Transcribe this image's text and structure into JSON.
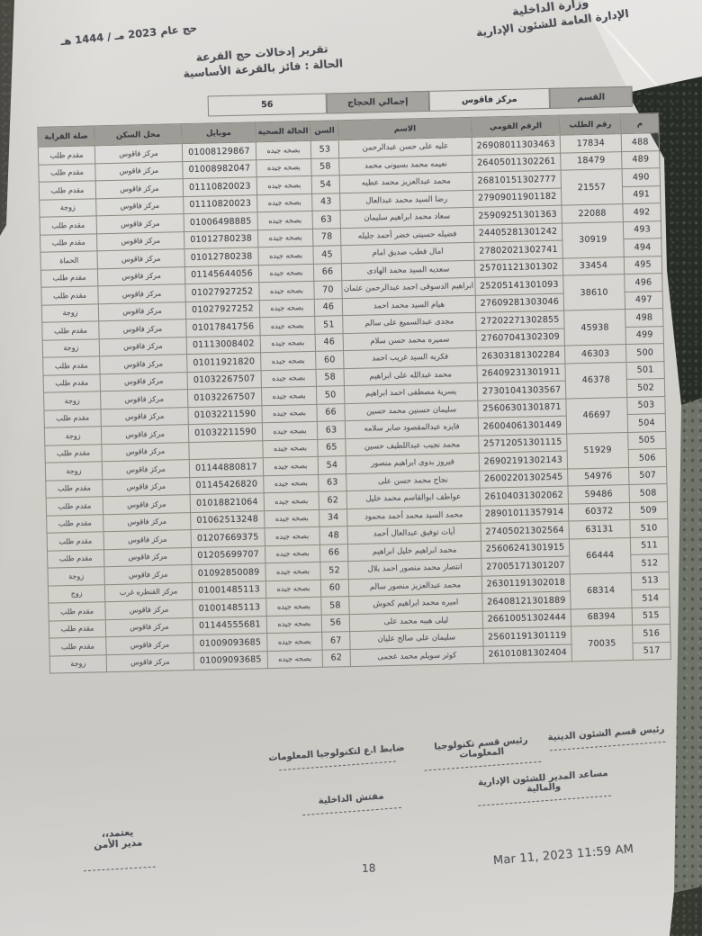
{
  "meta": {
    "ministry_line1": "وزارة الداخلية",
    "ministry_line2": "الإدارة العامة للشئون الإدارية",
    "hajj_year": "حج عام 2023 مـ / 1444 هـ",
    "report_title": "تقرير إدخالات حج القرعة",
    "report_status": "الحالة : فائز بالقرعة الأساسية"
  },
  "summary": {
    "section_label": "القسم",
    "section_value": "مركز فاقوس",
    "total_label": "إجمالي الحجاج",
    "total_value": "56"
  },
  "table": {
    "columns": [
      "م",
      "رقم الطلب",
      "الرقم القومي",
      "الاسم",
      "السن",
      "الحالة الصحية",
      "موبايل",
      "محل السكن",
      "صلة القرابة"
    ],
    "rows": [
      {
        "serial": "488",
        "app_no": "17834",
        "app_span": 1,
        "national_id": "26908011303463",
        "name": "عليه على حسن عبدالرحمن",
        "age": "53",
        "health": "بصحه جيده",
        "mobile": "01008129867",
        "residence": "مركز فاقوس",
        "relation": "مقدم طلب"
      },
      {
        "serial": "489",
        "app_no": "18479",
        "app_span": 1,
        "national_id": "26405011302261",
        "name": "نعيمه محمد بسيونى محمد",
        "age": "58",
        "health": "بصحه جيده",
        "mobile": "01008982047",
        "residence": "مركز فاقوس",
        "relation": "مقدم طلب"
      },
      {
        "serial": "490",
        "app_no": "21557",
        "app_span": 2,
        "national_id": "26810151302777",
        "name": "محمد عبدالعزيز محمد عطيه",
        "age": "54",
        "health": "بصحه جيده",
        "mobile": "01110820023",
        "residence": "مركز فاقوس",
        "relation": "مقدم طلب"
      },
      {
        "serial": "491",
        "app_no": "",
        "app_span": 0,
        "national_id": "27909011901182",
        "name": "رضا السيد محمد عبدالعال",
        "age": "43",
        "health": "بصحه جيده",
        "mobile": "01110820023",
        "residence": "مركز فاقوس",
        "relation": "زوجة"
      },
      {
        "serial": "492",
        "app_no": "22088",
        "app_span": 1,
        "national_id": "25909251301363",
        "name": "سعاد محمد ابراهيم سليمان",
        "age": "63",
        "health": "بصحه جيده",
        "mobile": "01006498885",
        "residence": "مركز فاقوس",
        "relation": "مقدم طلب"
      },
      {
        "serial": "493",
        "app_no": "30919",
        "app_span": 2,
        "national_id": "24405281301242",
        "name": "فضيله حسينى خضر أحمد جليله",
        "age": "78",
        "health": "بصحه جيده",
        "mobile": "01012780238",
        "residence": "مركز فاقوس",
        "relation": "مقدم طلب"
      },
      {
        "serial": "494",
        "app_no": "",
        "app_span": 0,
        "national_id": "27802021302741",
        "name": "امال قطب صديق امام",
        "age": "45",
        "health": "بصحه جيده",
        "mobile": "01012780238",
        "residence": "مركز فاقوس",
        "relation": "الحماة"
      },
      {
        "serial": "495",
        "app_no": "33454",
        "app_span": 1,
        "national_id": "25701121301302",
        "name": "سعديه السيد محمد الهادى",
        "age": "66",
        "health": "بصحه جيده",
        "mobile": "01145644056",
        "residence": "مركز فاقوس",
        "relation": "مقدم طلب"
      },
      {
        "serial": "496",
        "app_no": "38610",
        "app_span": 2,
        "national_id": "25205141301093",
        "name": "ابراهيم الدسوقى احمد عبدالرحمن عثمان",
        "age": "70",
        "health": "بصحه جيده",
        "mobile": "01027927252",
        "residence": "مركز فاقوس",
        "relation": "مقدم طلب"
      },
      {
        "serial": "497",
        "app_no": "",
        "app_span": 0,
        "national_id": "27609281303046",
        "name": "هيام السيد محمد احمد",
        "age": "46",
        "health": "بصحه جيده",
        "mobile": "01027927252",
        "residence": "مركز فاقوس",
        "relation": "زوجة"
      },
      {
        "serial": "498",
        "app_no": "45938",
        "app_span": 2,
        "national_id": "27202271302855",
        "name": "مجدى عبدالسميع على سالم",
        "age": "51",
        "health": "بصحه جيده",
        "mobile": "01017841756",
        "residence": "مركز فاقوس",
        "relation": "مقدم طلب"
      },
      {
        "serial": "499",
        "app_no": "",
        "app_span": 0,
        "national_id": "27607041302309",
        "name": "سميره محمد حسن سلام",
        "age": "46",
        "health": "بصحه جيده",
        "mobile": "01113008402",
        "residence": "مركز فاقوس",
        "relation": "زوجة"
      },
      {
        "serial": "500",
        "app_no": "46303",
        "app_span": 1,
        "national_id": "26303181302284",
        "name": "فكريه السيد غريب احمد",
        "age": "60",
        "health": "بصحه جيده",
        "mobile": "01011921820",
        "residence": "مركز فاقوس",
        "relation": "مقدم طلب"
      },
      {
        "serial": "501",
        "app_no": "46378",
        "app_span": 2,
        "national_id": "26409231301911",
        "name": "محمد عبدالله على ابراهيم",
        "age": "58",
        "health": "بصحه جيده",
        "mobile": "01032267507",
        "residence": "مركز فاقوس",
        "relation": "مقدم طلب"
      },
      {
        "serial": "502",
        "app_no": "",
        "app_span": 0,
        "national_id": "27301041303567",
        "name": "يسرية مصطفى احمد ابراهيم",
        "age": "50",
        "health": "بصحه جيده",
        "mobile": "01032267507",
        "residence": "مركز فاقوس",
        "relation": "زوجة"
      },
      {
        "serial": "503",
        "app_no": "46697",
        "app_span": 2,
        "national_id": "25606301301871",
        "name": "سليمان حسنين محمد حسين",
        "age": "66",
        "health": "بصحه جيده",
        "mobile": "01032211590",
        "residence": "مركز فاقوس",
        "relation": "مقدم طلب"
      },
      {
        "serial": "504",
        "app_no": "",
        "app_span": 0,
        "national_id": "26004061301449",
        "name": "فايزه عبدالمقصود صابر سلامه",
        "age": "63",
        "health": "بصحه جيده",
        "mobile": "01032211590",
        "residence": "مركز فاقوس",
        "relation": "زوجة"
      },
      {
        "serial": "505",
        "app_no": "51929",
        "app_span": 2,
        "national_id": "25712051301115",
        "name": "محمد نجيب عبداللطيف حسين",
        "age": "65",
        "health": "بصحه جيده",
        "mobile": "",
        "residence": "مركز فاقوس",
        "relation": "مقدم طلب"
      },
      {
        "serial": "506",
        "app_no": "",
        "app_span": 0,
        "national_id": "26902191302143",
        "name": "فيروز بدوى ابراهيم منصور",
        "age": "54",
        "health": "بصحه جيده",
        "mobile": "01144880817",
        "residence": "مركز فاقوس",
        "relation": "زوجة"
      },
      {
        "serial": "507",
        "app_no": "54976",
        "app_span": 1,
        "national_id": "26002201302545",
        "name": "نجاح محمد حسن على",
        "age": "63",
        "health": "بصحه جيده",
        "mobile": "01145426820",
        "residence": "مركز فاقوس",
        "relation": "مقدم طلب"
      },
      {
        "serial": "508",
        "app_no": "59486",
        "app_span": 1,
        "national_id": "26104031302062",
        "name": "عواطف ابوالقاسم محمد خليل",
        "age": "62",
        "health": "بصحه جيده",
        "mobile": "01018821064",
        "residence": "مركز فاقوس",
        "relation": "مقدم طلب"
      },
      {
        "serial": "509",
        "app_no": "60372",
        "app_span": 1,
        "national_id": "28901011357914",
        "name": "محمد السيد محمد أحمد محمود",
        "age": "34",
        "health": "بصحه جيده",
        "mobile": "01062513248",
        "residence": "مركز فاقوس",
        "relation": "مقدم طلب"
      },
      {
        "serial": "510",
        "app_no": "63131",
        "app_span": 1,
        "national_id": "27405021302564",
        "name": "أيات توفيق عبدالعال أحمد",
        "age": "48",
        "health": "بصحه جيده",
        "mobile": "01207669375",
        "residence": "مركز فاقوس",
        "relation": "مقدم طلب"
      },
      {
        "serial": "511",
        "app_no": "66444",
        "app_span": 2,
        "national_id": "25606241301915",
        "name": "محمد ابراهيم خليل ابراهيم",
        "age": "66",
        "health": "بصحه جيده",
        "mobile": "01205699707",
        "residence": "مركز فاقوس",
        "relation": "مقدم طلب"
      },
      {
        "serial": "512",
        "app_no": "",
        "app_span": 0,
        "national_id": "27005171301207",
        "name": "انتصار محمد منصور احمد بلال",
        "age": "52",
        "health": "بصحه جيده",
        "mobile": "01092850089",
        "residence": "مركز فاقوس",
        "relation": "زوجة"
      },
      {
        "serial": "513",
        "app_no": "68314",
        "app_span": 2,
        "national_id": "26301191302018",
        "name": "محمد عبدالعزيز منصور سالم",
        "age": "60",
        "health": "بصحه جيده",
        "mobile": "01001485113",
        "residence": "مركز القنطره غرب",
        "relation": "زوج"
      },
      {
        "serial": "514",
        "app_no": "",
        "app_span": 0,
        "national_id": "26408121301889",
        "name": "اميره محمد ابراهيم كحوش",
        "age": "58",
        "health": "بصحه جيده",
        "mobile": "01001485113",
        "residence": "مركز فاقوس",
        "relation": "مقدم طلب"
      },
      {
        "serial": "515",
        "app_no": "68394",
        "app_span": 1,
        "national_id": "26610051302444",
        "name": "ليلى هيبه محمد على",
        "age": "56",
        "health": "بصحه جيده",
        "mobile": "01144555681",
        "residence": "مركز فاقوس",
        "relation": "مقدم طلب"
      },
      {
        "serial": "516",
        "app_no": "70035",
        "app_span": 2,
        "national_id": "25601191301119",
        "name": "سليمان على صالح عليان",
        "age": "67",
        "health": "بصحه جيده",
        "mobile": "01009093685",
        "residence": "مركز فاقوس",
        "relation": "مقدم طلب"
      },
      {
        "serial": "517",
        "app_no": "",
        "app_span": 0,
        "national_id": "26101081302404",
        "name": "كوثر سويلم محمد عجمى",
        "age": "62",
        "health": "بصحه جيده",
        "mobile": "01009093685",
        "residence": "مركز فاقوس",
        "relation": "زوجة"
      }
    ]
  },
  "signatures": [
    {
      "title": "رئيس قسم الشئون الدينية"
    },
    {
      "title": "رئيس قسم تكنولوجيا المعلومات"
    },
    {
      "title": "ضابط ا.ع لتكنولوجيا المعلومات"
    },
    {
      "title": "مساعد المدير للشئون الإدارية والمالية"
    },
    {
      "title": "مفتش الداخلية"
    }
  ],
  "approval": {
    "line1": "يعتمد،،",
    "line2": "مدير الأمن"
  },
  "footer": {
    "page_number": "18",
    "printed_at": "Mar 11, 2023 11:59 AM"
  }
}
